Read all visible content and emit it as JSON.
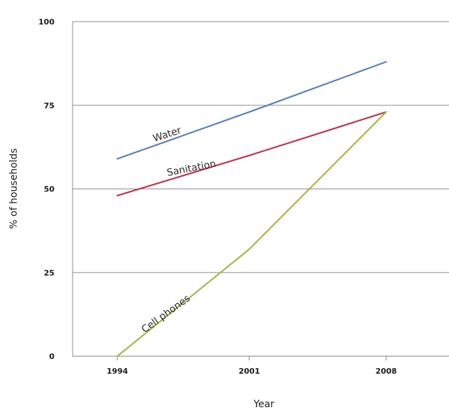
{
  "chart_data": {
    "type": "line",
    "title": "",
    "xlabel": "Year",
    "ylabel": "% of households",
    "x": [
      1994,
      2001,
      2008
    ],
    "xticks": [
      "1994",
      "2001",
      "2008"
    ],
    "yticks": [
      "0",
      "25",
      "50",
      "75",
      "100"
    ],
    "xlim": [
      1994,
      2008
    ],
    "ylim": [
      0,
      100
    ],
    "grid": "horizontal",
    "legend": "inline labels",
    "series": [
      {
        "name": "Water",
        "values": [
          59,
          73,
          88
        ],
        "color": "#5b7fbe"
      },
      {
        "name": "Sanitation",
        "values": [
          48,
          60,
          73
        ],
        "color": "#c0344f"
      },
      {
        "name": "Cell phones",
        "values": [
          0,
          32,
          73
        ],
        "color": "#a9b448"
      }
    ]
  }
}
